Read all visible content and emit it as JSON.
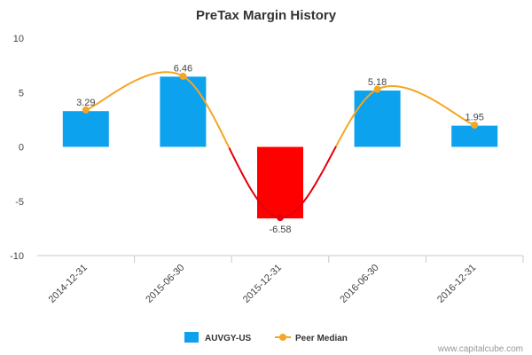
{
  "chart_data": {
    "type": "bar",
    "title": "PreTax Margin History",
    "categories": [
      "2014-12-31",
      "2015-06-30",
      "2015-12-31",
      "2016-06-30",
      "2016-12-31"
    ],
    "series": [
      {
        "name": "AUVGY-US",
        "type": "bar",
        "values": [
          3.29,
          6.46,
          -6.58,
          5.18,
          1.95
        ],
        "data_labels": [
          "3.29",
          "6.46",
          "-6.58",
          "5.18",
          "1.95"
        ],
        "color_positive": "#0da2ee",
        "color_negative": "#ff0000"
      },
      {
        "name": "Peer Median",
        "type": "line",
        "values": [
          3.4,
          6.5,
          -6.5,
          5.3,
          2.0
        ],
        "color_positive": "#f5a623",
        "color_negative": "#e3000b"
      }
    ],
    "ylim": [
      -10,
      10
    ],
    "yticks": [
      10,
      5,
      0,
      -5,
      -10
    ],
    "ytick_labels": [
      "10",
      "5",
      "0",
      "-5",
      "-10"
    ],
    "xlabel": "",
    "ylabel": "",
    "grid": false,
    "legend_position": "bottom-center"
  },
  "footer": {
    "source": "www.capitalcube.com"
  }
}
